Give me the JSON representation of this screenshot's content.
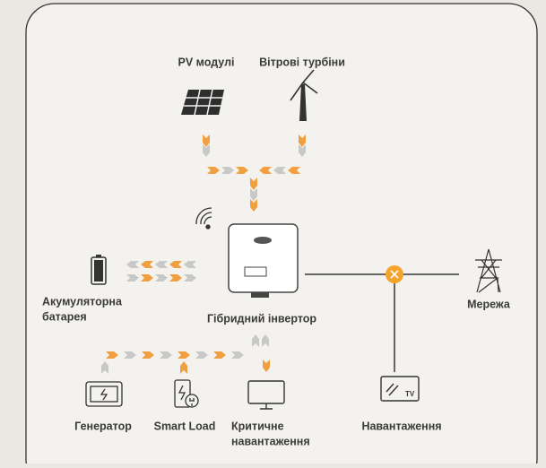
{
  "nodes": [
    {
      "label": [
        "PV модулі"
      ]
    },
    {
      "label": [
        "Вітрові турбіни"
      ]
    },
    {
      "label": [
        "Акумуляторна",
        "батарея"
      ]
    },
    {
      "label": [
        "Гібридний інвертор"
      ]
    },
    {
      "label": [
        "Мережа"
      ]
    },
    {
      "label": [
        "Генератор"
      ]
    },
    {
      "label": [
        "Smart Load"
      ]
    },
    {
      "label": [
        "Критичне",
        "навантаження"
      ]
    },
    {
      "label": [
        "Навантаження"
      ],
      "icon_text": "TV"
    }
  ]
}
